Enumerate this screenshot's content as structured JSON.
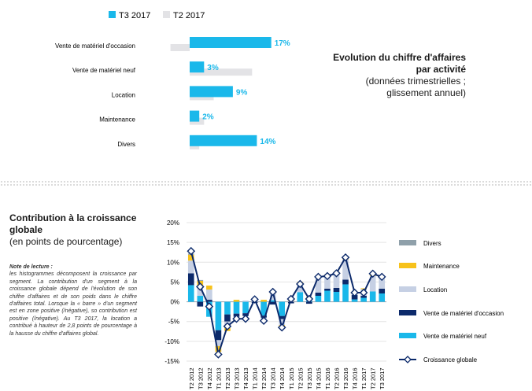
{
  "colors": {
    "cyan": "#1ab8ea",
    "light_grey": "#e3e3e6",
    "divers": "#8fa0aa",
    "maintenance": "#f7c21b",
    "location": "#c6d0e4",
    "occasion": "#0c2a6b",
    "neuf": "#1ab8ea",
    "line": "#0c2a6b",
    "label_cyan": "#1ab8ea"
  },
  "top_panel": {
    "title_bold": "Evolution du chiffre d'affaires par activité",
    "title_sub": "(données trimestrielles ; glissement annuel)"
  },
  "bottom_panel": {
    "title_bold": "Contribution à la croissance globale",
    "title_sub": "(en points de pourcentage)",
    "note_title": "Note de lecture :",
    "note_text": "les histogrammes décomposent la croissance par segment. La contribution d'un segment à la croissance globale dépend de l'évolution de son chiffre d'affaires et de son poids dans le chiffre d'affaires total. Lorsque la « barre » d'un segment est en zone positive (/négative), so contribution est positive (/négative). Au T3 2017, la location a contribué à hauteur de 2,8 points de pourcentage à la hausse du chiffre d'affaires global."
  },
  "chart_data": [
    {
      "type": "bar",
      "orientation": "horizontal",
      "categories": [
        "Vente de matériel d'occasion",
        "Vente de matériel neuf",
        "Location",
        "Maintenance",
        "Divers"
      ],
      "series": [
        {
          "name": "T3 2017",
          "values": [
            17,
            3,
            9,
            2,
            14
          ],
          "labels": [
            "17%",
            "3%",
            "9%",
            "2%",
            "14%"
          ]
        },
        {
          "name": "T2 2017",
          "values": [
            -4,
            13,
            5,
            3,
            2
          ]
        }
      ],
      "xlim": [
        -5,
        18
      ],
      "legend": "top"
    },
    {
      "type": "bar",
      "stacked": true,
      "categories": [
        "T2 2012",
        "T3 2012",
        "T4 2012",
        "T1 2013",
        "T2 2013",
        "T3 2013",
        "T4 2013",
        "T1 2014",
        "T2 2014",
        "T3 2014",
        "T4 2014",
        "T1 2015",
        "T2 2015",
        "T3 2015",
        "T4 2015",
        "T1 2016",
        "T2 2016",
        "T3 2016",
        "T4 2016",
        "T1 2017",
        "T2 2017",
        "T3 2017"
      ],
      "series": [
        {
          "name": "Divers",
          "values": [
            0.3,
            0.2,
            0,
            0,
            0,
            0,
            0,
            0,
            0,
            0,
            0,
            0,
            0,
            0,
            0,
            0,
            0,
            0,
            0,
            0,
            0,
            0
          ]
        },
        {
          "name": "Maintenance",
          "values": [
            1.5,
            1.5,
            1.0,
            -1.5,
            -0.8,
            0.5,
            0,
            0,
            0.5,
            0.3,
            -0.5,
            0.2,
            0.3,
            0.3,
            0.3,
            0.2,
            0.5,
            0.6,
            0.3,
            0.2,
            0.6,
            0.2
          ]
        },
        {
          "name": "Location",
          "values": [
            3.2,
            2.3,
            2.6,
            -1.5,
            -1.6,
            -0.5,
            0.3,
            0.6,
            -0.3,
            1.7,
            -1.5,
            0.2,
            2.3,
            0.7,
            3.8,
            3.4,
            3.6,
            5.1,
            0.5,
            1.7,
            3.9,
            2.8
          ]
        },
        {
          "name": "Vente de matériel d'occasion",
          "values": [
            3.0,
            -1.2,
            0.5,
            -2.5,
            -1.8,
            -0.8,
            -0.7,
            -0.3,
            -0.5,
            -0.7,
            -0.8,
            -0.4,
            0,
            -0.5,
            0.8,
            0.5,
            1.0,
            1.2,
            1.1,
            0.5,
            0,
            1.2
          ]
        },
        {
          "name": "Vente de matériel neuf",
          "values": [
            4.2,
            1.5,
            -3.8,
            -7.2,
            -3.2,
            -3.0,
            -2.9,
            0,
            -3.5,
            0.4,
            -3.6,
            0,
            2.4,
            0.2,
            1.5,
            2.8,
            2.5,
            4.4,
            0.6,
            1.0,
            2.6,
            2.1
          ]
        }
      ],
      "line": {
        "name": "Croissance globale",
        "values": [
          12.8,
          3.8,
          -1.2,
          -13.3,
          -6.2,
          -4.3,
          -4.3,
          0.6,
          -4.8,
          2.5,
          -6.5,
          0.7,
          4.5,
          0.7,
          6.3,
          6.5,
          7.2,
          11.2,
          2.3,
          2.3,
          7.1,
          6.3
        ]
      },
      "ylim": [
        -15,
        20
      ],
      "yticks": [
        "20%",
        "15%",
        "10%",
        "5%",
        "0%",
        "-5%",
        "-10%",
        "-15%"
      ],
      "legend": "right"
    }
  ]
}
